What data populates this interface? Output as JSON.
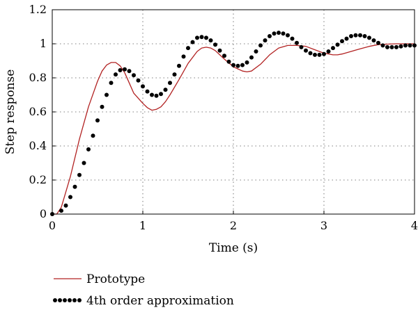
{
  "chart_data": {
    "type": "line",
    "title": "",
    "xlabel": "Time (s)",
    "ylabel": "Step response",
    "xlim": [
      0,
      4
    ],
    "ylim": [
      0,
      1.2
    ],
    "xticks": [
      "0",
      "1",
      "2",
      "3",
      "4"
    ],
    "yticks": [
      "0",
      "0.2",
      "0.4",
      "0.6",
      "0.8",
      "1",
      "1.2"
    ],
    "grid": true,
    "legend_position": "bottom",
    "series": [
      {
        "name": "Prototype",
        "style": "solid",
        "color": "#b22222",
        "x": [
          0,
          0.05,
          0.1,
          0.2,
          0.3,
          0.4,
          0.5,
          0.55,
          0.6,
          0.65,
          0.7,
          0.75,
          0.8,
          0.85,
          0.9,
          1.0,
          1.05,
          1.1,
          1.15,
          1.2,
          1.25,
          1.3,
          1.4,
          1.5,
          1.6,
          1.65,
          1.7,
          1.75,
          1.8,
          1.9,
          2.0,
          2.1,
          2.15,
          2.2,
          2.3,
          2.4,
          2.5,
          2.6,
          2.7,
          2.8,
          2.9,
          3.0,
          3.1,
          3.15,
          3.2,
          3.3,
          3.4,
          3.5,
          3.6,
          3.7,
          3.8,
          3.85,
          3.9,
          4.0
        ],
        "y": [
          0,
          0.0,
          0.04,
          0.22,
          0.44,
          0.63,
          0.78,
          0.84,
          0.875,
          0.89,
          0.89,
          0.87,
          0.83,
          0.77,
          0.71,
          0.65,
          0.625,
          0.61,
          0.615,
          0.63,
          0.66,
          0.7,
          0.79,
          0.885,
          0.955,
          0.975,
          0.98,
          0.975,
          0.96,
          0.91,
          0.865,
          0.84,
          0.835,
          0.84,
          0.88,
          0.935,
          0.975,
          0.99,
          0.99,
          0.985,
          0.965,
          0.945,
          0.935,
          0.935,
          0.94,
          0.955,
          0.97,
          0.985,
          0.995,
          0.998,
          1.0,
          1.0,
          1.0,
          1.0
        ]
      },
      {
        "name": "4th order approximation",
        "style": "dotted",
        "color": "#000000",
        "x": [
          0,
          0.1,
          0.15,
          0.2,
          0.25,
          0.3,
          0.35,
          0.4,
          0.45,
          0.5,
          0.55,
          0.6,
          0.65,
          0.7,
          0.75,
          0.8,
          0.85,
          0.9,
          0.95,
          1.0,
          1.05,
          1.1,
          1.15,
          1.2,
          1.25,
          1.3,
          1.35,
          1.4,
          1.45,
          1.5,
          1.55,
          1.6,
          1.65,
          1.7,
          1.75,
          1.8,
          1.85,
          1.9,
          1.95,
          2.0,
          2.05,
          2.1,
          2.15,
          2.2,
          2.25,
          2.3,
          2.35,
          2.4,
          2.45,
          2.5,
          2.55,
          2.6,
          2.65,
          2.7,
          2.75,
          2.8,
          2.85,
          2.9,
          2.95,
          3.0,
          3.05,
          3.1,
          3.15,
          3.2,
          3.25,
          3.3,
          3.35,
          3.4,
          3.45,
          3.5,
          3.55,
          3.6,
          3.65,
          3.7,
          3.75,
          3.8,
          3.85,
          3.9,
          3.95,
          4.0
        ],
        "y": [
          0,
          0.02,
          0.05,
          0.1,
          0.16,
          0.23,
          0.3,
          0.38,
          0.46,
          0.55,
          0.63,
          0.7,
          0.77,
          0.82,
          0.845,
          0.85,
          0.84,
          0.815,
          0.785,
          0.75,
          0.72,
          0.7,
          0.695,
          0.705,
          0.73,
          0.77,
          0.82,
          0.87,
          0.925,
          0.975,
          1.01,
          1.035,
          1.04,
          1.035,
          1.02,
          0.995,
          0.96,
          0.93,
          0.895,
          0.875,
          0.87,
          0.875,
          0.89,
          0.92,
          0.955,
          0.99,
          1.02,
          1.045,
          1.06,
          1.065,
          1.06,
          1.05,
          1.03,
          1.005,
          0.98,
          0.96,
          0.945,
          0.935,
          0.935,
          0.94,
          0.955,
          0.975,
          0.995,
          1.015,
          1.03,
          1.045,
          1.05,
          1.05,
          1.045,
          1.035,
          1.02,
          1.005,
          0.99,
          0.98,
          0.98,
          0.98,
          0.985,
          0.99,
          0.99,
          0.99
        ]
      }
    ]
  }
}
